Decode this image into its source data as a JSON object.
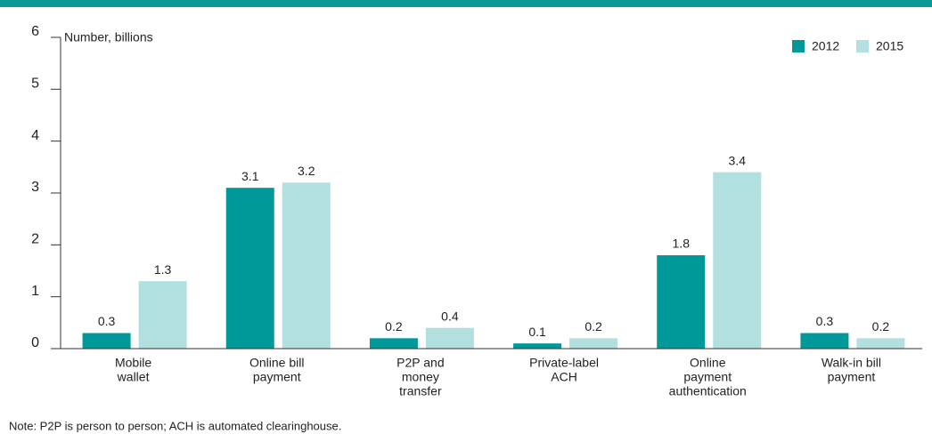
{
  "chart_data": {
    "type": "bar",
    "y_axis_label": "Number, billions",
    "categories": [
      [
        "Mobile",
        "wallet"
      ],
      [
        "Online bill",
        "payment"
      ],
      [
        "P2P and",
        "money",
        "transfer"
      ],
      [
        "Private-label",
        "ACH"
      ],
      [
        "Online",
        "payment",
        "authentication"
      ],
      [
        "Walk-in bill",
        "payment"
      ]
    ],
    "series": [
      {
        "name": "2012",
        "color": "#00999a",
        "values": [
          0.3,
          3.1,
          0.2,
          0.1,
          1.8,
          0.3
        ]
      },
      {
        "name": "2015",
        "color": "#b2dfe0",
        "values": [
          1.3,
          3.2,
          0.4,
          0.2,
          3.4,
          0.2
        ]
      }
    ],
    "ylim": [
      0,
      6
    ],
    "yticks": [
      0,
      1,
      2,
      3,
      4,
      5,
      6
    ],
    "legend": "top-right",
    "note": "Note: P2P is person to person; ACH is automated clearinghouse."
  }
}
